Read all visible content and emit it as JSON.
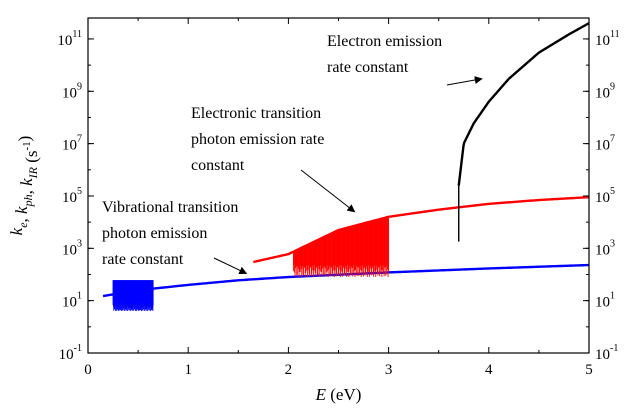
{
  "chart_data": {
    "type": "line",
    "x_axis": {
      "label_var": "E",
      "label_unit": "(eV)",
      "range": [
        0,
        5
      ],
      "ticks": [
        "0",
        "1",
        "2",
        "3",
        "4",
        "5"
      ]
    },
    "y_axis": {
      "scale": "log",
      "range": [
        0.1,
        630957344480
      ],
      "ticks": [
        {
          "base": "10",
          "exp": "-1",
          "value": 0.1
        },
        {
          "base": "10",
          "exp": "1",
          "value": 10
        },
        {
          "base": "10",
          "exp": "3",
          "value": 1000
        },
        {
          "base": "10",
          "exp": "5",
          "value": 100000
        },
        {
          "base": "10",
          "exp": "7",
          "value": 10000000
        },
        {
          "base": "10",
          "exp": "9",
          "value": 1000000000
        },
        {
          "base": "10",
          "exp": "11",
          "value": 100000000000
        }
      ],
      "label_parts": [
        {
          "t": "k",
          "i": true
        },
        {
          "t": "e",
          "i": true,
          "sub": true
        },
        {
          "t": ", "
        },
        {
          "t": "k",
          "i": true
        },
        {
          "t": "ph",
          "i": true,
          "sub": true
        },
        {
          "t": ", "
        },
        {
          "t": "k",
          "i": true
        },
        {
          "t": "IR",
          "i": true,
          "sub": true
        },
        {
          "t": "  (s"
        },
        {
          "t": "-1",
          "sup": true
        },
        {
          "t": ")"
        }
      ]
    },
    "right_axis_mirrored": true,
    "grid": false,
    "series": [
      {
        "color": "#0000ff",
        "baseline": {
          "x": [
            0.15,
            0.5,
            1.0,
            1.5,
            2.0,
            3.0,
            4.0,
            5.0
          ],
          "y": [
            15,
            25,
            40,
            60,
            80,
            120,
            170,
            230
          ]
        },
        "fluctuation": {
          "x_range": [
            0.25,
            0.65
          ],
          "y_max": 60,
          "y_min": 4
        }
      },
      {
        "color": "#ff0000",
        "baseline": {
          "x": [
            1.65,
            2.0,
            2.5,
            3.0,
            3.5,
            4.0,
            4.5,
            5.0
          ],
          "y": [
            300,
            600,
            5000,
            16000,
            30000,
            50000,
            70000,
            90000
          ]
        },
        "fluctuation": {
          "x_range": [
            2.05,
            3.0
          ],
          "y_min": 80
        }
      },
      {
        "color": "#000000",
        "baseline": {
          "x": [
            3.7,
            3.75,
            3.85,
            4.0,
            4.2,
            4.5,
            4.8,
            5.0
          ],
          "y": [
            250000,
            10000000,
            60000000,
            400000000,
            3000000000,
            30000000000,
            150000000000,
            400000000000
          ]
        },
        "drop_line": {
          "x": 3.7,
          "y_from": 250000,
          "y_to": 1800
        }
      }
    ],
    "annotations": [
      {
        "lines": [
          "Electron emission",
          "rate constant"
        ],
        "arrow_to": {
          "x": 3.93,
          "y": 3000000000
        }
      },
      {
        "lines": [
          "Electronic transition",
          "photon emission rate",
          "constant"
        ],
        "arrow_to": {
          "x": 2.66,
          "y": 25000
        }
      },
      {
        "lines": [
          "Vibrational transition",
          "photon emission",
          "rate constant"
        ],
        "arrow_to": {
          "x": 1.58,
          "y": 110
        }
      }
    ]
  }
}
